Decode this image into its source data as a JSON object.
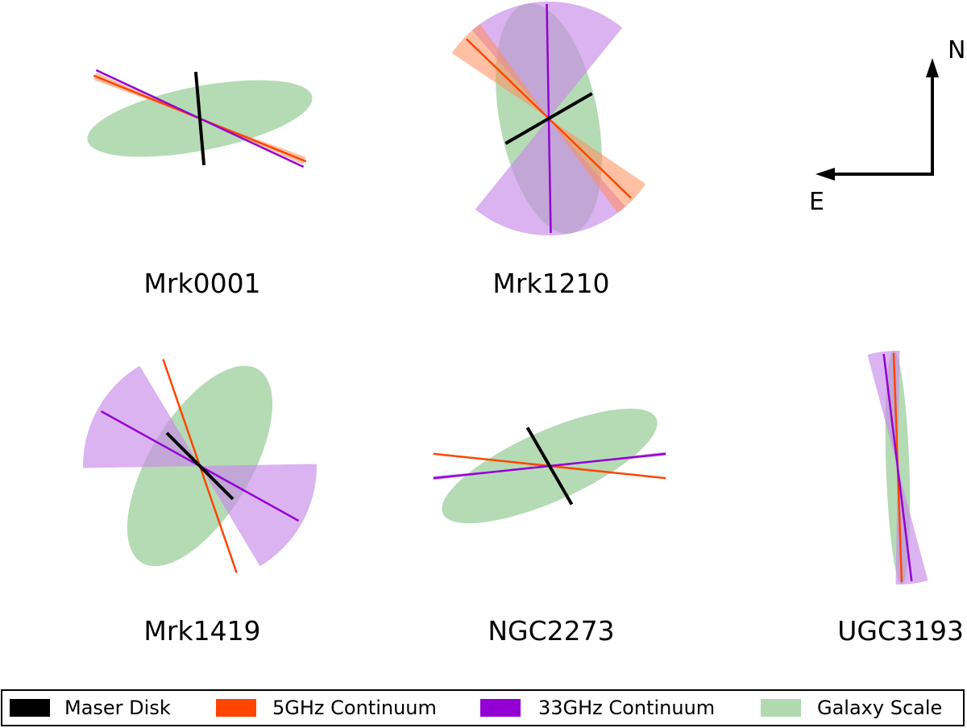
{
  "colors": {
    "maser": "#000000",
    "continuum_5ghz": "#ff4500",
    "continuum_33ghz": "#9400d3",
    "galaxy": "#9ccf9c",
    "continuum_5ghz_fill": "#ff8c5a",
    "continuum_33ghz_fill": "#c78be8"
  },
  "compass": {
    "north": "N",
    "east": "E"
  },
  "legend": {
    "items": [
      {
        "key": "maser",
        "label": "Maser Disk"
      },
      {
        "key": "continuum_5ghz",
        "label": "5GHz Continuum"
      },
      {
        "key": "continuum_33ghz",
        "label": "33GHz Continuum"
      },
      {
        "key": "galaxy",
        "label": "Galaxy Scale"
      }
    ]
  },
  "galaxies": [
    {
      "name": "Mrk0001",
      "galaxy_pa_deg": 101,
      "galaxy_ratio": 0.28,
      "maser_pa_deg": 5,
      "c5_pa_deg": 68,
      "c5_err_deg": 2,
      "c33_pa_deg": 65,
      "c33_err_deg": 0
    },
    {
      "name": "Mrk1210",
      "galaxy_pa_deg": 11,
      "galaxy_ratio": 0.42,
      "maser_pa_deg": 120,
      "c5_pa_deg": 46,
      "c5_err_deg": 10,
      "c33_pa_deg": 1,
      "c33_err_deg": 40
    },
    {
      "name": "Mrk1419",
      "galaxy_pa_deg": 149,
      "galaxy_ratio": 0.45,
      "maser_pa_deg": 45,
      "c5_pa_deg": 19,
      "c5_err_deg": 0,
      "c33_pa_deg": 61,
      "c33_err_deg": 30
    },
    {
      "name": "NGC2273",
      "galaxy_pa_deg": 114,
      "galaxy_ratio": 0.3,
      "maser_pa_deg": 30,
      "c5_pa_deg": 84,
      "c5_err_deg": 0,
      "c33_pa_deg": 96,
      "c33_err_deg": 1
    },
    {
      "name": "UGC3193",
      "galaxy_pa_deg": 2,
      "galaxy_ratio": 0.1,
      "maser_pa_deg": null,
      "c5_pa_deg": 2,
      "c5_err_deg": 0,
      "c33_pa_deg": 7,
      "c33_err_deg": 8
    }
  ]
}
